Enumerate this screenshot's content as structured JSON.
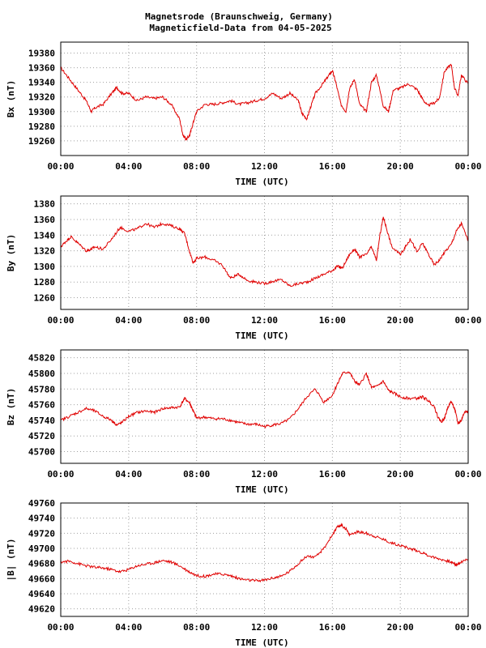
{
  "title": {
    "line1": "Magnetsrode (Braunschweig, Germany)",
    "line2": "Magneticfield-Data from 04-05-2025"
  },
  "colors": {
    "trace": "#e00000",
    "grid": "#a0a0a0",
    "frame": "#000000",
    "background": "#ffffff"
  },
  "chart_data": [
    {
      "type": "line",
      "ylabel": "Bx (nT)",
      "xlabel": "TIME (UTC)",
      "x_ticks": [
        "00:00",
        "04:00",
        "08:00",
        "12:00",
        "16:00",
        "20:00",
        "00:00"
      ],
      "x_range_hours": [
        0,
        24
      ],
      "ylim": [
        19240,
        19395
      ],
      "y_ticks": [
        19260,
        19280,
        19300,
        19320,
        19340,
        19360,
        19380
      ],
      "grid": true,
      "series": [
        {
          "x": [
            0,
            0.5,
            1,
            1.5,
            1.8,
            2,
            2.5,
            3,
            3.3,
            3.6,
            4,
            4.5,
            5,
            5.5,
            6,
            6.5,
            7,
            7.2,
            7.4,
            7.6,
            7.8,
            8,
            8.5,
            9,
            9.5,
            10,
            10.5,
            11,
            11.5,
            12,
            12.5,
            13,
            13.5,
            14,
            14.2,
            14.5,
            14.7,
            15,
            15.5,
            15.8,
            16,
            16.2,
            16.5,
            16.8,
            17,
            17.3,
            17.6,
            18,
            18.3,
            18.6,
            19,
            19.3,
            19.6,
            20,
            20.5,
            21,
            21.3,
            21.6,
            22,
            22.3,
            22.6,
            23,
            23.2,
            23.4,
            23.6,
            24
          ],
          "values": [
            19360,
            19345,
            19330,
            19315,
            19300,
            19305,
            19310,
            19325,
            19333,
            19325,
            19325,
            19315,
            19320,
            19318,
            19320,
            19310,
            19290,
            19268,
            19262,
            19268,
            19285,
            19300,
            19310,
            19310,
            19312,
            19315,
            19310,
            19312,
            19315,
            19318,
            19325,
            19318,
            19325,
            19315,
            19298,
            19290,
            19305,
            19325,
            19340,
            19350,
            19356,
            19340,
            19310,
            19300,
            19330,
            19345,
            19310,
            19300,
            19340,
            19350,
            19308,
            19300,
            19330,
            19332,
            19338,
            19330,
            19318,
            19308,
            19312,
            19318,
            19355,
            19365,
            19332,
            19322,
            19350,
            19338
          ]
        }
      ]
    },
    {
      "type": "line",
      "ylabel": "By (nT)",
      "xlabel": "TIME (UTC)",
      "x_ticks": [
        "00:00",
        "04:00",
        "08:00",
        "12:00",
        "16:00",
        "20:00",
        "00:00"
      ],
      "x_range_hours": [
        0,
        24
      ],
      "ylim": [
        1245,
        1390
      ],
      "y_ticks": [
        1260,
        1280,
        1300,
        1320,
        1340,
        1360,
        1380
      ],
      "grid": true,
      "series": [
        {
          "x": [
            0,
            0.3,
            0.6,
            1,
            1.5,
            1.8,
            2,
            2.5,
            3,
            3.5,
            4,
            4.5,
            5,
            5.5,
            6,
            6.5,
            7,
            7.3,
            7.6,
            7.8,
            8,
            8.5,
            9,
            9.5,
            10,
            10.5,
            11,
            11.5,
            12,
            12.5,
            13,
            13.5,
            14,
            14.5,
            15,
            15.5,
            16,
            16.3,
            16.6,
            17,
            17.3,
            17.6,
            18,
            18.3,
            18.6,
            18.8,
            19,
            19.2,
            19.5,
            20,
            20.3,
            20.6,
            21,
            21.3,
            21.6,
            22,
            22.3,
            22.6,
            23,
            23.3,
            23.6,
            24
          ],
          "values": [
            1325,
            1332,
            1338,
            1330,
            1320,
            1322,
            1325,
            1322,
            1335,
            1350,
            1345,
            1348,
            1355,
            1350,
            1355,
            1352,
            1348,
            1342,
            1318,
            1305,
            1310,
            1312,
            1308,
            1302,
            1285,
            1290,
            1282,
            1280,
            1278,
            1281,
            1283,
            1275,
            1278,
            1280,
            1285,
            1290,
            1295,
            1300,
            1298,
            1315,
            1322,
            1312,
            1315,
            1325,
            1308,
            1340,
            1363,
            1348,
            1325,
            1315,
            1325,
            1335,
            1318,
            1330,
            1318,
            1302,
            1308,
            1318,
            1328,
            1345,
            1355,
            1333
          ]
        }
      ]
    },
    {
      "type": "line",
      "ylabel": "Bz (nT)",
      "xlabel": "TIME (UTC)",
      "x_ticks": [
        "00:00",
        "04:00",
        "08:00",
        "12:00",
        "16:00",
        "20:00",
        "00:00"
      ],
      "x_range_hours": [
        0,
        24
      ],
      "ylim": [
        45685,
        45830
      ],
      "y_ticks": [
        45700,
        45720,
        45740,
        45760,
        45780,
        45800,
        45820
      ],
      "grid": true,
      "series": [
        {
          "x": [
            0,
            0.5,
            1,
            1.5,
            2,
            2.5,
            3,
            3.3,
            3.6,
            4,
            4.5,
            5,
            5.5,
            6,
            6.5,
            7,
            7.3,
            7.6,
            7.8,
            8,
            8.5,
            9,
            9.5,
            10,
            10.5,
            11,
            11.5,
            12,
            12.5,
            13,
            13.5,
            14,
            14.5,
            15,
            15.5,
            16,
            16.3,
            16.6,
            17,
            17.3,
            17.6,
            18,
            18.3,
            18.6,
            19,
            19.3,
            19.6,
            20,
            20.5,
            21,
            21.3,
            21.6,
            22,
            22.2,
            22.4,
            22.6,
            22.8,
            23,
            23.2,
            23.4,
            23.6,
            23.8,
            24
          ],
          "values": [
            45740,
            45745,
            45750,
            45755,
            45752,
            45745,
            45740,
            45734,
            45737,
            45745,
            45750,
            45752,
            45750,
            45755,
            45756,
            45757,
            45768,
            45762,
            45752,
            45743,
            45744,
            45742,
            45742,
            45740,
            45737,
            45735,
            45735,
            45732,
            45734,
            45736,
            45742,
            45755,
            45770,
            45780,
            45763,
            45772,
            45787,
            45800,
            45802,
            45790,
            45785,
            45800,
            45782,
            45783,
            45790,
            45778,
            45775,
            45770,
            45768,
            45768,
            45770,
            45766,
            45758,
            45745,
            45738,
            45742,
            45757,
            45764,
            45755,
            45736,
            45740,
            45752,
            45750
          ]
        }
      ]
    },
    {
      "type": "line",
      "ylabel": "|B| (nT)",
      "xlabel": "TIME (UTC)",
      "x_ticks": [
        "00:00",
        "04:00",
        "08:00",
        "12:00",
        "16:00",
        "20:00",
        "00:00"
      ],
      "x_range_hours": [
        0,
        24
      ],
      "ylim": [
        49610,
        49760
      ],
      "y_ticks": [
        49620,
        49640,
        49660,
        49680,
        49700,
        49720,
        49740,
        49760
      ],
      "grid": true,
      "series": [
        {
          "x": [
            0,
            0.5,
            1,
            1.5,
            2,
            2.5,
            3,
            3.5,
            4,
            4.5,
            5,
            5.5,
            6,
            6.5,
            7,
            7.5,
            8,
            8.5,
            9,
            9.5,
            10,
            10.5,
            11,
            11.5,
            12,
            12.5,
            13,
            13.5,
            14,
            14.5,
            15,
            15.5,
            16,
            16.3,
            16.5,
            16.8,
            17,
            17.5,
            18,
            18.5,
            19,
            19.5,
            20,
            20.5,
            21,
            21.5,
            22,
            22.5,
            23,
            23.3,
            23.6,
            24
          ],
          "values": [
            49682,
            49683,
            49680,
            49677,
            49675,
            49674,
            49672,
            49669,
            49672,
            49677,
            49679,
            49681,
            49684,
            49682,
            49677,
            49670,
            49664,
            49663,
            49666,
            49666,
            49664,
            49660,
            49658,
            49657,
            49658,
            49661,
            49663,
            49670,
            49680,
            49690,
            49688,
            49700,
            49718,
            49728,
            49731,
            49726,
            49718,
            49722,
            49720,
            49716,
            49712,
            49707,
            49704,
            49700,
            49697,
            49692,
            49688,
            49685,
            49682,
            49678,
            49682,
            49686
          ]
        }
      ]
    }
  ]
}
